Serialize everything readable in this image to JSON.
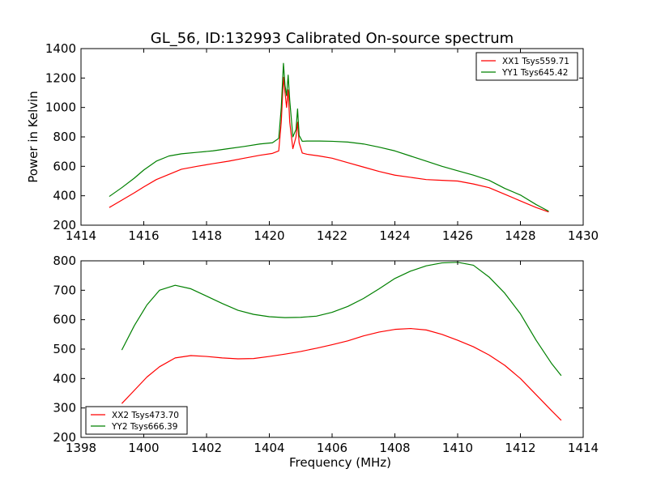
{
  "figure": {
    "title": "GL_56, ID:132993 Calibrated On-source spectrum"
  },
  "chart_data": [
    {
      "type": "line",
      "title": "GL_56, ID:132993 Calibrated On-source spectrum",
      "xlabel": "",
      "ylabel": "Power in Kelvin",
      "xlim": [
        1414,
        1430
      ],
      "ylim": [
        200,
        1400
      ],
      "x_ticks": [
        1414,
        1416,
        1418,
        1420,
        1422,
        1424,
        1426,
        1428,
        1430
      ],
      "y_ticks": [
        200,
        400,
        600,
        800,
        1000,
        1200,
        1400
      ],
      "grid": false,
      "legend_position": "top-right",
      "series": [
        {
          "name": "XX1 Tsys559.71",
          "color": "#ff0000",
          "x": [
            1414.9,
            1415.3,
            1415.7,
            1416.0,
            1416.4,
            1416.8,
            1417.2,
            1417.7,
            1418.2,
            1418.7,
            1419.2,
            1419.7,
            1420.1,
            1420.3,
            1420.38,
            1420.45,
            1420.5,
            1420.55,
            1420.6,
            1420.65,
            1420.75,
            1420.85,
            1420.9,
            1420.95,
            1421.05,
            1421.2,
            1421.6,
            1422.0,
            1422.5,
            1423.0,
            1423.5,
            1424.0,
            1424.5,
            1425.0,
            1425.5,
            1426.0,
            1426.5,
            1427.0,
            1427.5,
            1428.0,
            1428.5,
            1428.9
          ],
          "y": [
            320,
            370,
            420,
            460,
            510,
            545,
            580,
            600,
            618,
            635,
            655,
            675,
            688,
            705,
            900,
            1205,
            1100,
            1000,
            1120,
            900,
            720,
            800,
            900,
            760,
            690,
            682,
            670,
            655,
            625,
            595,
            565,
            540,
            525,
            510,
            505,
            500,
            480,
            455,
            410,
            365,
            320,
            290
          ]
        },
        {
          "name": "YY1 Tsys645.42",
          "color": "#008000",
          "x": [
            1414.9,
            1415.3,
            1415.7,
            1416.0,
            1416.4,
            1416.8,
            1417.2,
            1417.7,
            1418.2,
            1418.7,
            1419.2,
            1419.7,
            1420.1,
            1420.3,
            1420.38,
            1420.45,
            1420.5,
            1420.55,
            1420.6,
            1420.65,
            1420.75,
            1420.85,
            1420.9,
            1420.95,
            1421.05,
            1421.2,
            1421.6,
            1422.0,
            1422.5,
            1423.0,
            1423.5,
            1424.0,
            1424.5,
            1425.0,
            1425.5,
            1426.0,
            1426.5,
            1427.0,
            1427.5,
            1428.0,
            1428.5,
            1428.9
          ],
          "y": [
            395,
            455,
            520,
            575,
            635,
            670,
            685,
            695,
            705,
            720,
            735,
            752,
            760,
            790,
            1000,
            1300,
            1150,
            1080,
            1220,
            1050,
            800,
            850,
            990,
            810,
            770,
            772,
            772,
            770,
            765,
            752,
            730,
            705,
            670,
            635,
            600,
            570,
            540,
            505,
            450,
            405,
            340,
            295
          ]
        }
      ]
    },
    {
      "type": "line",
      "title": "",
      "xlabel": "Frequency (MHz)",
      "ylabel": "",
      "xlim": [
        1398,
        1414
      ],
      "ylim": [
        200,
        800
      ],
      "x_ticks": [
        1398,
        1400,
        1402,
        1404,
        1406,
        1408,
        1410,
        1412,
        1414
      ],
      "y_ticks": [
        200,
        300,
        400,
        500,
        600,
        700,
        800
      ],
      "grid": false,
      "legend_position": "bottom-left",
      "series": [
        {
          "name": "XX2 Tsys473.70",
          "color": "#ff0000",
          "x": [
            1399.3,
            1399.7,
            1400.1,
            1400.5,
            1401.0,
            1401.5,
            1402.0,
            1402.5,
            1403.0,
            1403.5,
            1404.0,
            1404.5,
            1405.0,
            1405.5,
            1406.0,
            1406.5,
            1407.0,
            1407.5,
            1408.0,
            1408.5,
            1409.0,
            1409.5,
            1410.0,
            1410.5,
            1411.0,
            1411.5,
            1412.0,
            1412.5,
            1413.0,
            1413.3
          ],
          "y": [
            315,
            360,
            405,
            440,
            470,
            478,
            475,
            470,
            467,
            468,
            475,
            483,
            492,
            503,
            515,
            528,
            545,
            558,
            567,
            570,
            565,
            550,
            530,
            508,
            480,
            445,
            400,
            345,
            290,
            258
          ]
        },
        {
          "name": "YY2 Tsys666.39",
          "color": "#008000",
          "x": [
            1399.3,
            1399.7,
            1400.1,
            1400.5,
            1401.0,
            1401.5,
            1402.0,
            1402.5,
            1403.0,
            1403.5,
            1404.0,
            1404.5,
            1405.0,
            1405.5,
            1406.0,
            1406.5,
            1407.0,
            1407.5,
            1408.0,
            1408.5,
            1409.0,
            1409.5,
            1410.0,
            1410.5,
            1411.0,
            1411.5,
            1412.0,
            1412.5,
            1413.0,
            1413.3
          ],
          "y": [
            497,
            580,
            650,
            700,
            717,
            705,
            680,
            655,
            632,
            618,
            610,
            607,
            608,
            612,
            625,
            645,
            672,
            705,
            740,
            765,
            783,
            793,
            795,
            785,
            745,
            690,
            620,
            530,
            450,
            410
          ]
        }
      ]
    }
  ]
}
